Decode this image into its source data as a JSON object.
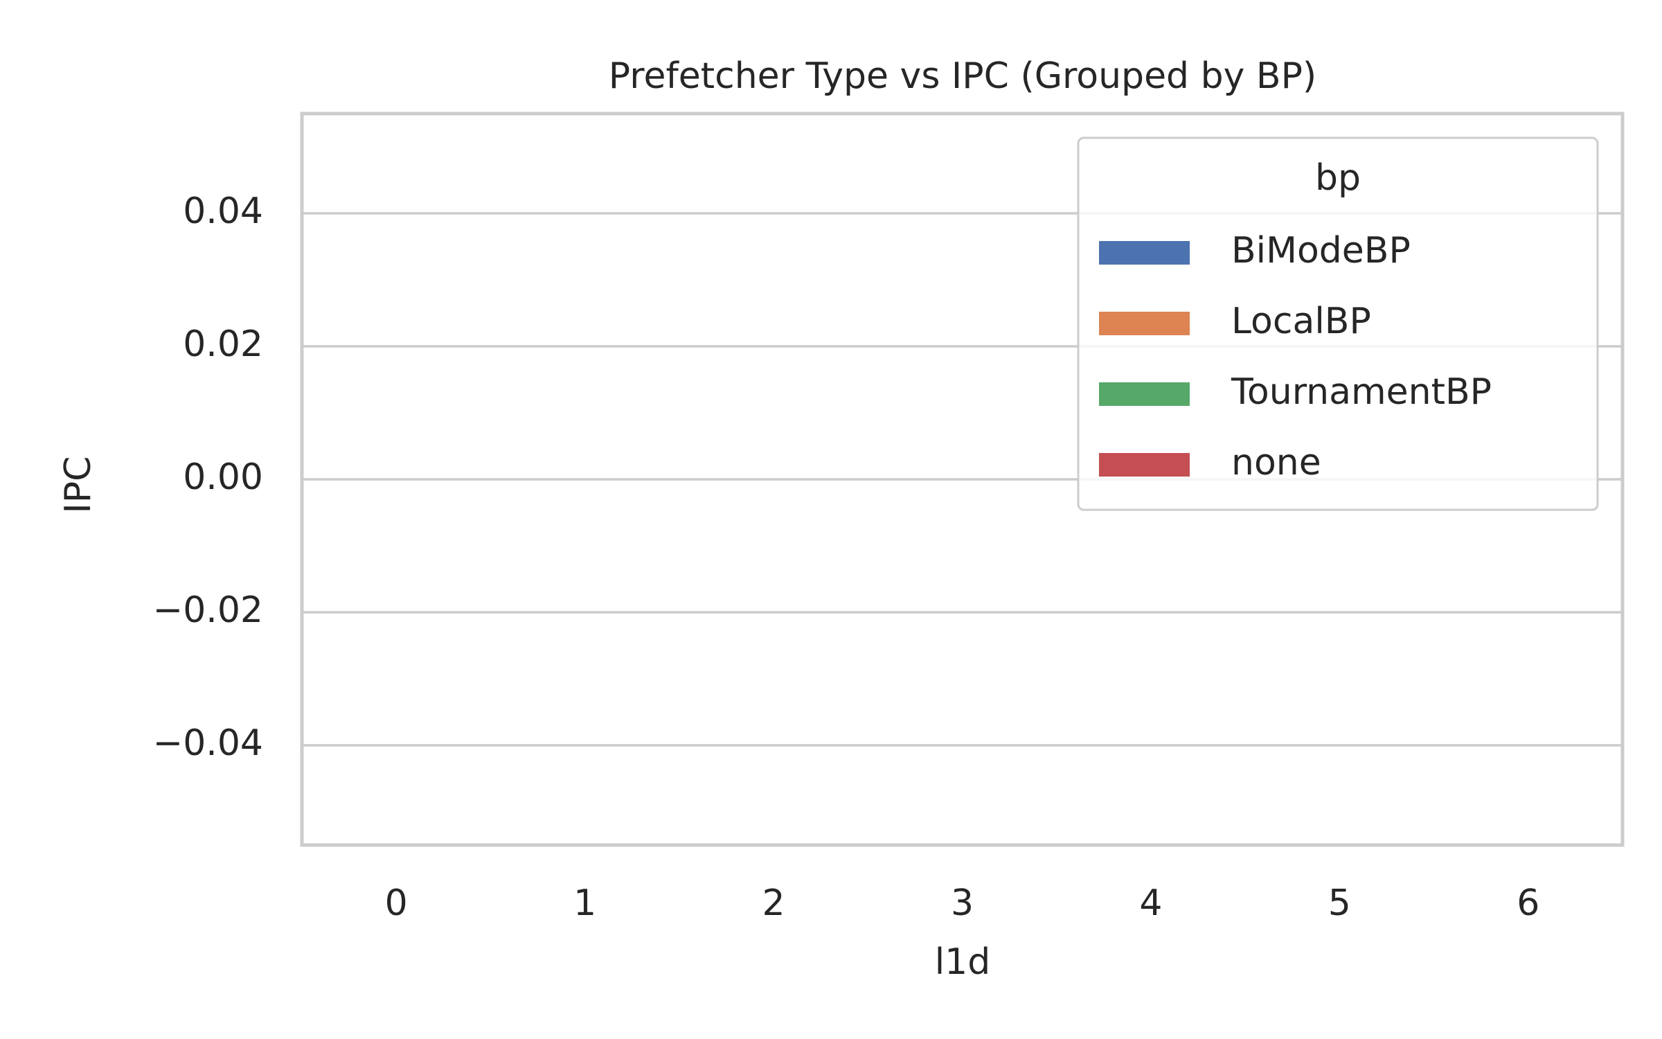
{
  "chart_data": {
    "type": "bar",
    "title": "Prefetcher Type vs IPC (Grouped by BP)",
    "x_label": "l1d",
    "y_label": "IPC",
    "categories": [
      "0",
      "1",
      "2",
      "3",
      "4",
      "5",
      "6"
    ],
    "series": [
      {
        "name": "BiModeBP",
        "color": "#4c72b0",
        "values": [
          null,
          null,
          null,
          null,
          null,
          null,
          null
        ]
      },
      {
        "name": "LocalBP",
        "color": "#dd8452",
        "values": [
          null,
          null,
          null,
          null,
          null,
          null,
          null
        ]
      },
      {
        "name": "TournamentBP",
        "color": "#55a868",
        "values": [
          null,
          null,
          null,
          null,
          null,
          null,
          null
        ]
      },
      {
        "name": "none",
        "color": "#c44e52",
        "values": [
          null,
          null,
          null,
          null,
          null,
          null,
          null
        ]
      }
    ],
    "legend_title": "bp",
    "legend_position": "upper right",
    "ylim": [
      -0.055,
      0.055
    ],
    "yticks": [
      {
        "value": -0.04,
        "label": "−0.04"
      },
      {
        "value": -0.02,
        "label": "−0.02"
      },
      {
        "value": 0,
        "label": "0.00"
      },
      0.02,
      0.04
    ],
    "grid": true
  }
}
